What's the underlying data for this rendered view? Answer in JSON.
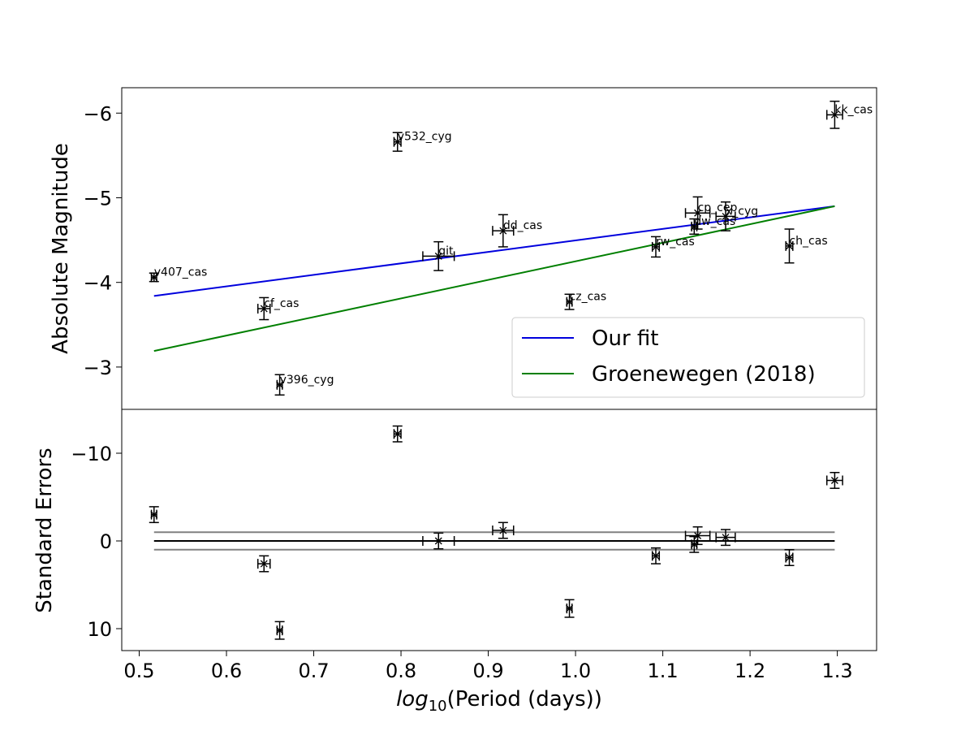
{
  "chart_data": {
    "type": "scatter",
    "x_label_italic": "log",
    "x_label_sub": "10",
    "x_label_rest": "(Period (days))",
    "xlim": [
      0.48,
      1.345
    ],
    "x_ticks": [
      0.5,
      0.6,
      0.7,
      0.8,
      0.9,
      1.0,
      1.1,
      1.2,
      1.3
    ],
    "x_tick_labels": [
      "0.5",
      "0.6",
      "0.7",
      "0.8",
      "0.9",
      "1.0",
      "1.1",
      "1.2",
      "1.3"
    ],
    "top_panel": {
      "ylabel": "Absolute Magnitude",
      "ylim": [
        -2.5,
        -6.3
      ],
      "y_inverted": true,
      "y_ticks": [
        -3,
        -4,
        -5,
        -6
      ],
      "y_tick_labels": [
        "−3",
        "−4",
        "−5",
        "−6"
      ],
      "points": [
        {
          "name": "v407_cas",
          "x": 0.517,
          "y": -4.06,
          "xerr": 0.003,
          "yerr": 0.05
        },
        {
          "name": "cf_cas",
          "x": 0.643,
          "y": -3.69,
          "xerr": 0.007,
          "yerr": 0.13
        },
        {
          "name": "v396_cyg",
          "x": 0.661,
          "y": -2.79,
          "xerr": 0.003,
          "yerr": 0.12
        },
        {
          "name": "v532_cyg",
          "x": 0.796,
          "y": -5.66,
          "xerr": 0.004,
          "yerr": 0.11
        },
        {
          "name": "git",
          "x": 0.843,
          "y": -4.31,
          "xerr": 0.018,
          "yerr": 0.17
        },
        {
          "name": "dd_cas",
          "x": 0.917,
          "y": -4.61,
          "xerr": 0.012,
          "yerr": 0.19
        },
        {
          "name": "cz_cas",
          "x": 0.993,
          "y": -3.77,
          "xerr": 0.003,
          "yerr": 0.09
        },
        {
          "name": "rw_cas",
          "x": 1.092,
          "y": -4.42,
          "xerr": 0.004,
          "yerr": 0.12
        },
        {
          "name": "cp_cep",
          "x": 1.14,
          "y": -4.82,
          "xerr": 0.014,
          "yerr": 0.19
        },
        {
          "name": "dw_cas",
          "x": 1.136,
          "y": -4.66,
          "xerr": 0.003,
          "yerr": 0.09
        },
        {
          "name": "x_cyg",
          "x": 1.172,
          "y": -4.78,
          "xerr": 0.011,
          "yerr": 0.17
        },
        {
          "name": "ch_cas",
          "x": 1.245,
          "y": -4.43,
          "xerr": 0.004,
          "yerr": 0.2
        },
        {
          "name": "kk_cas",
          "x": 1.297,
          "y": -5.98,
          "xerr": 0.009,
          "yerr": 0.16
        }
      ],
      "series": [
        {
          "name": "Our fit",
          "color": "#0000dd",
          "x": [
            0.517,
            1.297
          ],
          "y": [
            -3.84,
            -4.9
          ]
        },
        {
          "name": "Groenewegen (2018)",
          "color": "#007f00",
          "x": [
            0.517,
            1.297
          ],
          "y": [
            -3.19,
            -4.9
          ]
        }
      ],
      "legend_position": "lower-right"
    },
    "bottom_panel": {
      "ylabel": "Standard Errors",
      "ylim": [
        12.5,
        -15
      ],
      "y_inverted": true,
      "y_ticks": [
        -10,
        0,
        10
      ],
      "y_tick_labels": [
        "−10",
        "0",
        "10"
      ],
      "points": [
        {
          "x": 0.517,
          "y": -3.0,
          "xerr": 0.003,
          "yerr": 0.9
        },
        {
          "x": 0.643,
          "y": 2.6,
          "xerr": 0.007,
          "yerr": 0.9
        },
        {
          "x": 0.661,
          "y": 10.2,
          "xerr": 0.003,
          "yerr": 1.0
        },
        {
          "x": 0.796,
          "y": -12.2,
          "xerr": 0.004,
          "yerr": 0.9
        },
        {
          "x": 0.843,
          "y": 0.0,
          "xerr": 0.018,
          "yerr": 0.9
        },
        {
          "x": 0.917,
          "y": -1.2,
          "xerr": 0.012,
          "yerr": 0.9
        },
        {
          "x": 0.993,
          "y": 7.7,
          "xerr": 0.003,
          "yerr": 1.0
        },
        {
          "x": 1.092,
          "y": 1.7,
          "xerr": 0.004,
          "yerr": 0.9
        },
        {
          "x": 1.14,
          "y": -0.6,
          "xerr": 0.014,
          "yerr": 1.0
        },
        {
          "x": 1.136,
          "y": 0.4,
          "xerr": 0.003,
          "yerr": 0.9
        },
        {
          "x": 1.172,
          "y": -0.4,
          "xerr": 0.011,
          "yerr": 0.9
        },
        {
          "x": 1.245,
          "y": 1.9,
          "xerr": 0.004,
          "yerr": 0.9
        },
        {
          "x": 1.297,
          "y": -6.9,
          "xerr": 0.009,
          "yerr": 0.9
        }
      ],
      "reference_lines": [
        {
          "y": 0,
          "color": "#000000",
          "x": [
            0.517,
            1.297
          ]
        },
        {
          "y": -1,
          "color": "#808080",
          "x": [
            0.517,
            1.297
          ]
        },
        {
          "y": 1,
          "color": "#808080",
          "x": [
            0.517,
            1.297
          ]
        }
      ]
    }
  }
}
